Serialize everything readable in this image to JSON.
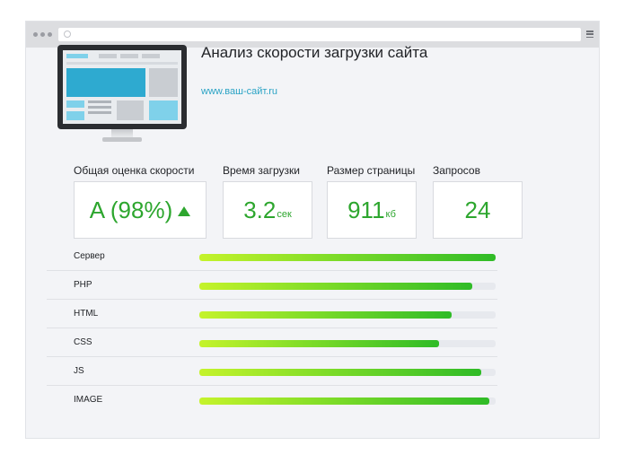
{
  "title": "Анализ скорости загрузки сайта",
  "site_url": "www.ваш-сайт.ru",
  "metrics": [
    {
      "label": "Общая оценка скорости",
      "value": "A (98%)",
      "unit": "",
      "trend": "up"
    },
    {
      "label": "Время загрузки",
      "value": "3.2",
      "unit": "сек"
    },
    {
      "label": "Размер страницы",
      "value": "911",
      "unit": "кб"
    },
    {
      "label": "Запросов",
      "value": "24",
      "unit": ""
    }
  ],
  "resources": [
    {
      "label": "Сервер",
      "percent": 100
    },
    {
      "label": "PHP",
      "percent": 92
    },
    {
      "label": "HTML",
      "percent": 85
    },
    {
      "label": "CSS",
      "percent": 81
    },
    {
      "label": "JS",
      "percent": 95
    },
    {
      "label": "IMAGE",
      "percent": 98
    }
  ],
  "colors": {
    "accent_green": "#2da62e",
    "link_blue": "#2aa3c5",
    "bar_start": "#c5f32b",
    "bar_end": "#2fbb27",
    "page_bg": "#f3f4f7"
  },
  "icons": [
    "menu-icon",
    "arrow-up-icon",
    "monitor-illustration"
  ]
}
